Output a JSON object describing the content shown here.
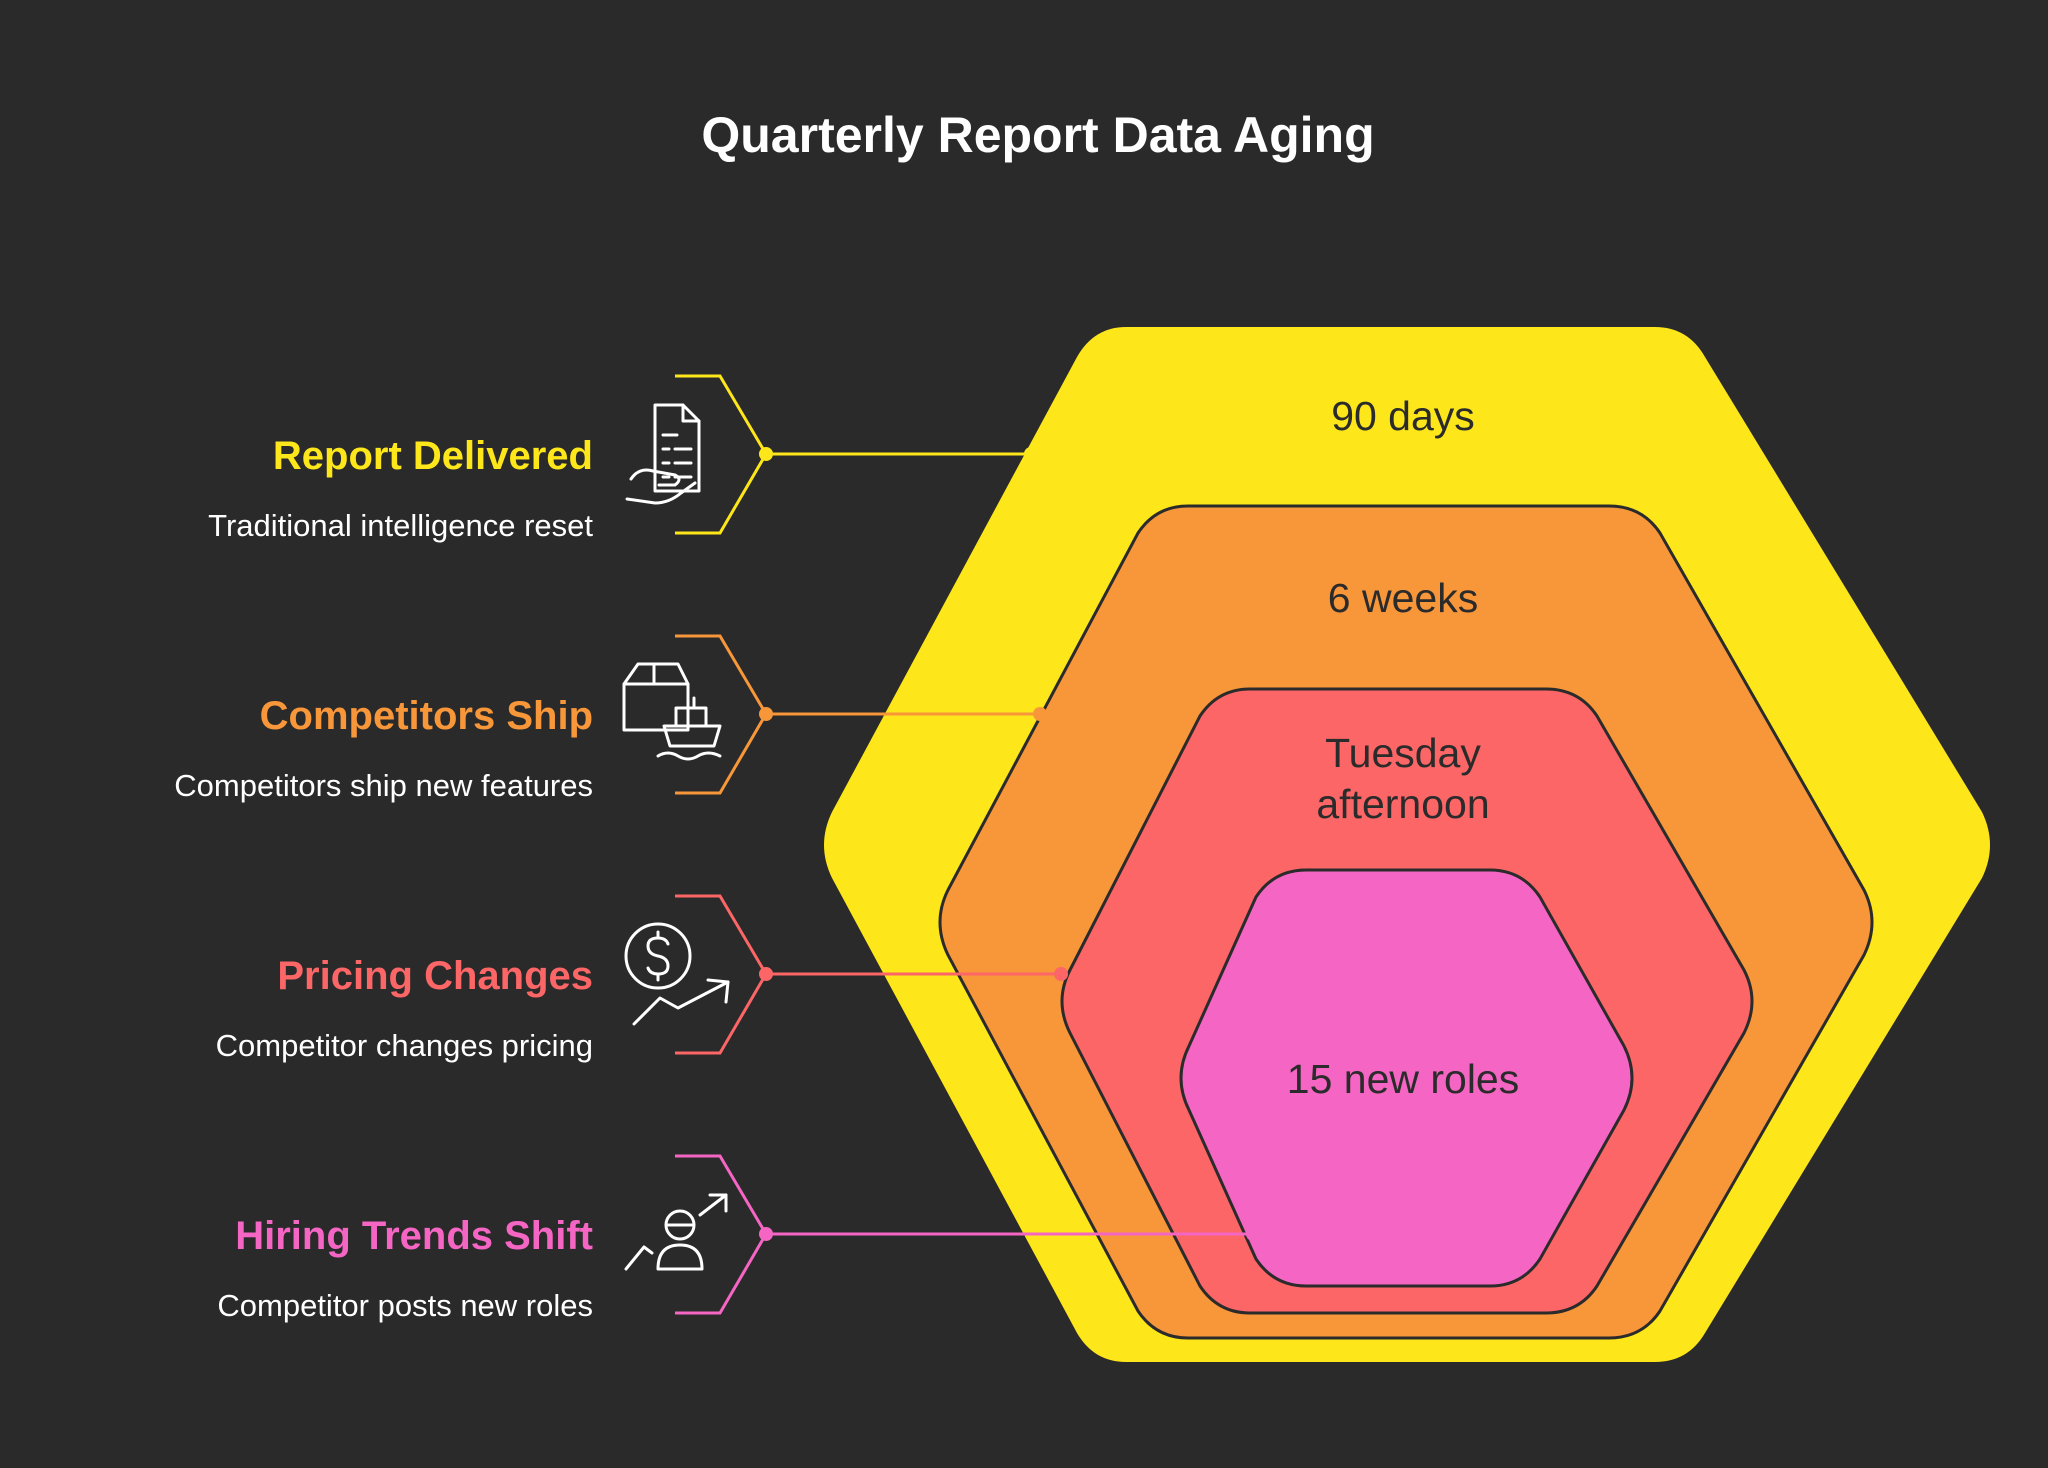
{
  "title": "Quarterly Report Data Aging",
  "colors": {
    "background": "#2a2a2a",
    "yellow": "#fde619",
    "orange": "#f8973a",
    "red": "#fc6667",
    "pink": "#f566c4",
    "outline": "#2b2b2b"
  },
  "layers": [
    {
      "label": "90 days"
    },
    {
      "label": "6 weeks"
    },
    {
      "label_lines": [
        "Tuesday",
        "afternoon"
      ]
    },
    {
      "label": "15 new roles"
    }
  ],
  "items": [
    {
      "title": "Report Delivered",
      "description": "Traditional intelligence reset",
      "icon": "document-hand-icon",
      "color": "#fde619"
    },
    {
      "title": "Competitors Ship",
      "description": "Competitors ship new features",
      "icon": "box-ship-icon",
      "color": "#f8973a"
    },
    {
      "title": "Pricing Changes",
      "description": "Competitor changes pricing",
      "icon": "dollar-trend-icon",
      "color": "#fc6667"
    },
    {
      "title": "Hiring Trends Shift",
      "description": "Competitor posts new roles",
      "icon": "person-growth-icon",
      "color": "#f566c4"
    }
  ]
}
